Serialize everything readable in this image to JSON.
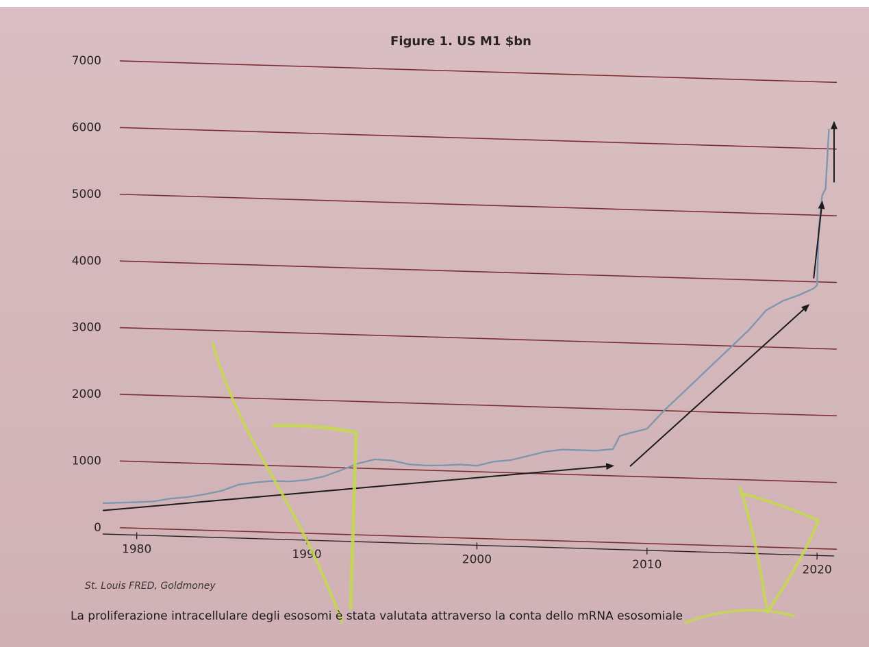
{
  "chart_data": {
    "type": "line",
    "title": "Figure 1. US M1 $bn",
    "xlabel": "",
    "ylabel": "",
    "xlim": [
      1978,
      2021
    ],
    "ylim": [
      0,
      7000
    ],
    "x_ticks": [
      "1980",
      "1990",
      "2000",
      "2010",
      "2020"
    ],
    "y_ticks": [
      "0",
      "1000",
      "2000",
      "3000",
      "4000",
      "5000",
      "6000",
      "7000"
    ],
    "grid": "horizontal",
    "series": [
      {
        "name": "",
        "color": "#7f97ad",
        "points": [
          [
            1978,
            360
          ],
          [
            1980,
            390
          ],
          [
            1981,
            410
          ],
          [
            1982,
            460
          ],
          [
            1983,
            490
          ],
          [
            1984,
            540
          ],
          [
            1985,
            600
          ],
          [
            1986,
            700
          ],
          [
            1987,
            740
          ],
          [
            1988,
            770
          ],
          [
            1989,
            770
          ],
          [
            1990,
            800
          ],
          [
            1991,
            860
          ],
          [
            1992,
            960
          ],
          [
            1993,
            1070
          ],
          [
            1994,
            1140
          ],
          [
            1995,
            1130
          ],
          [
            1996,
            1080
          ],
          [
            1997,
            1070
          ],
          [
            1998,
            1080
          ],
          [
            1999,
            1100
          ],
          [
            2000,
            1090
          ],
          [
            2001,
            1160
          ],
          [
            2002,
            1190
          ],
          [
            2003,
            1260
          ],
          [
            2004,
            1330
          ],
          [
            2005,
            1370
          ],
          [
            2006,
            1370
          ],
          [
            2007,
            1370
          ],
          [
            2008,
            1400
          ],
          [
            2008.4,
            1600
          ],
          [
            2009,
            1650
          ],
          [
            2010,
            1720
          ],
          [
            2011,
            2000
          ],
          [
            2012,
            2250
          ],
          [
            2013,
            2500
          ],
          [
            2014,
            2750
          ],
          [
            2015,
            3000
          ],
          [
            2016,
            3250
          ],
          [
            2017,
            3550
          ],
          [
            2018,
            3700
          ],
          [
            2019,
            3800
          ],
          [
            2019.8,
            3900
          ],
          [
            2020,
            3950
          ],
          [
            2020.1,
            4800
          ],
          [
            2020.3,
            5300
          ],
          [
            2020.5,
            5400
          ],
          [
            2020.7,
            6300
          ]
        ]
      }
    ],
    "annotations": [
      {
        "type": "arrow",
        "from": [
          1978,
          250
        ],
        "to": [
          2008,
          1150
        ]
      },
      {
        "type": "arrow",
        "from": [
          2009,
          1150
        ],
        "to": [
          2019.5,
          3650
        ]
      },
      {
        "type": "arrow",
        "from": [
          2019.8,
          4050
        ],
        "to": [
          2020.3,
          5200
        ]
      },
      {
        "type": "arrow",
        "from": [
          2021,
          5500
        ],
        "to": [
          2021,
          6400
        ]
      }
    ],
    "source": "St. Louis FRED, Goldmoney"
  },
  "caption": "La proliferazione intracellulare degli esosomi è stata valutata attraverso la conta dello mRNA esosomiale",
  "colors": {
    "background": "#d6babe",
    "grid": "#7a2e34",
    "line": "#7f97ad",
    "arrow": "#1c1c1c",
    "highlighter": "#c6d94a"
  }
}
